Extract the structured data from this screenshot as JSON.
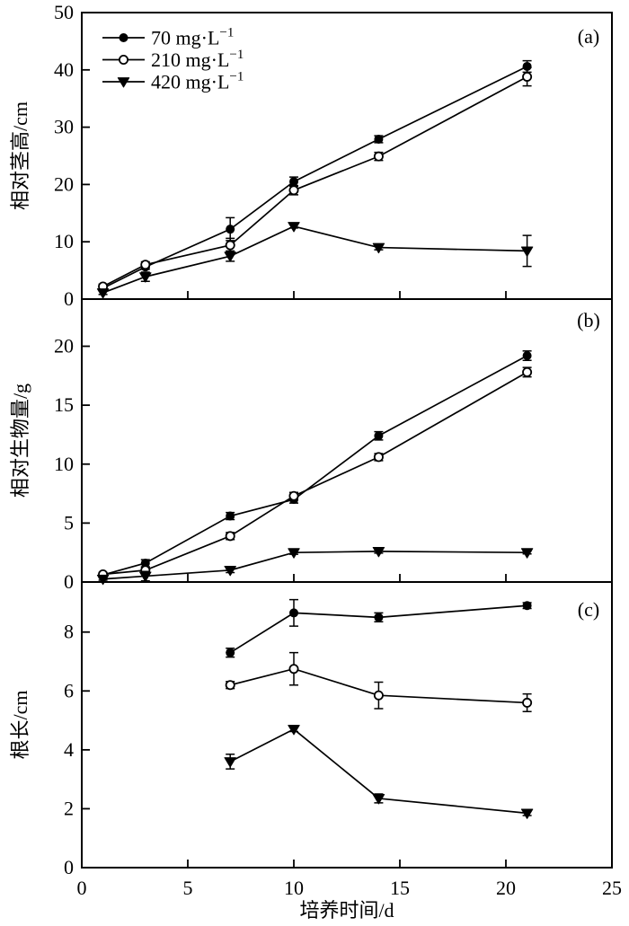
{
  "figure": {
    "background": "#ffffff",
    "axis_color": "#000000",
    "marker_color": "#000000"
  },
  "legend": {
    "position": "top-left-inside-panel-a",
    "items": [
      {
        "label": "70 mg·L",
        "sup": "−1",
        "marker": "circle-filled"
      },
      {
        "label": "210 mg·L",
        "sup": "−1",
        "marker": "circle-open"
      },
      {
        "label": "420 mg·L",
        "sup": "−1",
        "marker": "triangle-down-filled"
      }
    ]
  },
  "x_axis": {
    "label": "培养时间/d",
    "lim": [
      0,
      25
    ],
    "ticks": [
      0,
      5,
      10,
      15,
      20,
      25
    ]
  },
  "chart_data": [
    {
      "type": "line",
      "panel_label": "(a)",
      "ylabel": "相对茎高/cm",
      "ylim": [
        0,
        50
      ],
      "yticks": [
        0,
        10,
        20,
        30,
        40,
        50
      ],
      "grid": false,
      "x": [
        1,
        3,
        7,
        10,
        14,
        21
      ],
      "series": [
        {
          "name": "70 mg·L−1",
          "marker": "circle-filled",
          "values": [
            1.9,
            5.6,
            12.2,
            20.5,
            27.9,
            40.6
          ],
          "errors": [
            0.3,
            0.4,
            2.0,
            0.8,
            0.6,
            1.0
          ]
        },
        {
          "name": "210 mg·L−1",
          "marker": "circle-open",
          "values": [
            2.2,
            6.0,
            9.4,
            19.0,
            24.9,
            38.8
          ],
          "errors": [
            0.4,
            0.5,
            1.2,
            0.8,
            0.7,
            1.6
          ]
        },
        {
          "name": "420 mg·L−1",
          "marker": "triangle-down-filled",
          "values": [
            1.1,
            3.9,
            7.5,
            12.7,
            9.0,
            8.4
          ],
          "errors": [
            0.3,
            0.8,
            0.9,
            0.3,
            0.4,
            2.7
          ]
        }
      ]
    },
    {
      "type": "line",
      "panel_label": "(b)",
      "ylabel": "相对生物量/g",
      "ylim": [
        0,
        24
      ],
      "yticks": [
        0,
        5,
        10,
        15,
        20
      ],
      "grid": false,
      "x": [
        1,
        3,
        7,
        10,
        14,
        21
      ],
      "series": [
        {
          "name": "70 mg·L−1",
          "marker": "circle-filled",
          "values": [
            0.6,
            1.6,
            5.6,
            7.0,
            12.4,
            19.2
          ],
          "errors": [
            0.15,
            0.3,
            0.3,
            0.3,
            0.35,
            0.4
          ]
        },
        {
          "name": "210 mg·L−1",
          "marker": "circle-open",
          "values": [
            0.65,
            1.0,
            3.9,
            7.3,
            10.6,
            17.8
          ],
          "errors": [
            0.15,
            0.25,
            0.3,
            0.3,
            0.3,
            0.4
          ]
        },
        {
          "name": "420 mg·L−1",
          "marker": "triangle-down-filled",
          "values": [
            0.25,
            0.5,
            1.0,
            2.5,
            2.6,
            2.5
          ],
          "errors": [
            0.1,
            0.4,
            0.2,
            0.15,
            0.15,
            0.12
          ]
        }
      ]
    },
    {
      "type": "line",
      "panel_label": "(c)",
      "ylabel": "根长/cm",
      "ylim": [
        0,
        9.7
      ],
      "yticks": [
        0,
        2,
        4,
        6,
        8
      ],
      "grid": false,
      "x": [
        7,
        10,
        14,
        21
      ],
      "series": [
        {
          "name": "70 mg·L−1",
          "marker": "circle-filled",
          "values": [
            7.3,
            8.65,
            8.5,
            8.9
          ],
          "errors": [
            0.15,
            0.45,
            0.15,
            0.1
          ]
        },
        {
          "name": "210 mg·L−1",
          "marker": "circle-open",
          "values": [
            6.2,
            6.75,
            5.85,
            5.6
          ],
          "errors": [
            0.12,
            0.55,
            0.45,
            0.3
          ]
        },
        {
          "name": "420 mg·L−1",
          "marker": "triangle-down-filled",
          "values": [
            3.6,
            4.7,
            2.35,
            1.85
          ],
          "errors": [
            0.25,
            0.08,
            0.15,
            0.08
          ]
        }
      ]
    }
  ]
}
